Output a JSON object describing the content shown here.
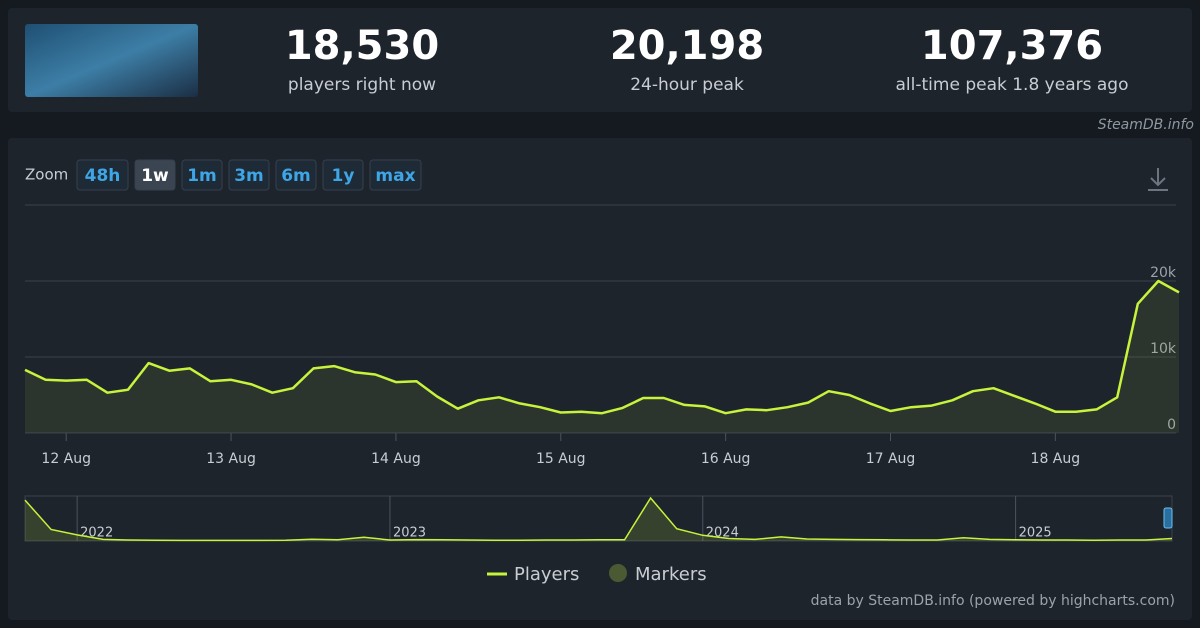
{
  "header": {
    "stats": [
      {
        "value": "18,530",
        "label": "players right now"
      },
      {
        "value": "20,198",
        "label": "24-hour peak"
      },
      {
        "value": "107,376",
        "label": "all-time peak 1.8 years ago"
      }
    ]
  },
  "watermark": "SteamDB.info",
  "zoom": {
    "label": "Zoom",
    "buttons": [
      "48h",
      "1w",
      "1m",
      "3m",
      "6m",
      "1y",
      "max"
    ],
    "active": "1w"
  },
  "credit": "data by SteamDB.info (powered by highcharts.com)",
  "chart_data": [
    {
      "type": "line",
      "categories": [
        null,
        null,
        "12 Aug",
        null,
        null,
        null,
        null,
        null,
        null,
        null,
        "13 Aug",
        null,
        null,
        null,
        null,
        null,
        null,
        null,
        "14 Aug",
        null,
        null,
        null,
        null,
        null,
        null,
        null,
        "15 Aug",
        null,
        null,
        null,
        null,
        null,
        null,
        null,
        "16 Aug",
        null,
        null,
        null,
        null,
        null,
        null,
        null,
        "17 Aug",
        null,
        null,
        null,
        null,
        null,
        null,
        null,
        "18 Aug",
        null,
        null,
        null,
        null,
        null,
        null
      ],
      "series": [
        {
          "name": "Players",
          "color": "#c6f33c",
          "values": [
            8300,
            7000,
            6900,
            7000,
            5300,
            5700,
            9200,
            8200,
            8500,
            6800,
            7000,
            6400,
            5300,
            5900,
            8500,
            8800,
            8000,
            7700,
            6700,
            6800,
            4800,
            3200,
            4300,
            4700,
            3900,
            3400,
            2700,
            2800,
            2600,
            3300,
            4600,
            4600,
            3700,
            3500,
            2600,
            3100,
            3000,
            3400,
            4000,
            5500,
            5000,
            3900,
            2900,
            3400,
            3600,
            4300,
            5500,
            5900,
            4900,
            3900,
            2800,
            2800,
            3100,
            4700,
            17000,
            20000,
            18500
          ]
        }
      ],
      "markers": {
        "name": "Markers",
        "color": "#4b5a33"
      },
      "ylim": [
        0,
        30000
      ],
      "yticks": [
        0,
        {
          "value": 10000,
          "label": "10k"
        },
        {
          "value": 20000,
          "label": "20k"
        }
      ],
      "grid": true
    },
    {
      "type": "area",
      "categories": [
        null,
        null,
        "2022",
        null,
        null,
        null,
        null,
        null,
        null,
        null,
        null,
        null,
        null,
        null,
        "2023",
        null,
        null,
        null,
        null,
        null,
        null,
        null,
        null,
        null,
        null,
        null,
        "2024",
        null,
        null,
        null,
        null,
        null,
        null,
        null,
        null,
        null,
        null,
        null,
        "2025",
        null,
        null,
        null,
        null,
        null,
        null
      ],
      "values": [
        100000,
        28000,
        15000,
        4000,
        2500,
        2000,
        1500,
        1500,
        1500,
        1500,
        2000,
        4500,
        3000,
        9000,
        2500,
        3500,
        3000,
        2500,
        2000,
        2000,
        2500,
        2500,
        3000,
        3000,
        105000,
        30000,
        14000,
        6000,
        4000,
        10000,
        5000,
        4000,
        3500,
        3000,
        2500,
        2500,
        8000,
        4000,
        3000,
        2500,
        2500,
        2000,
        2500,
        2500,
        6000
      ],
      "color": "#c6f33c",
      "ylim": [
        0,
        110000
      ]
    }
  ]
}
